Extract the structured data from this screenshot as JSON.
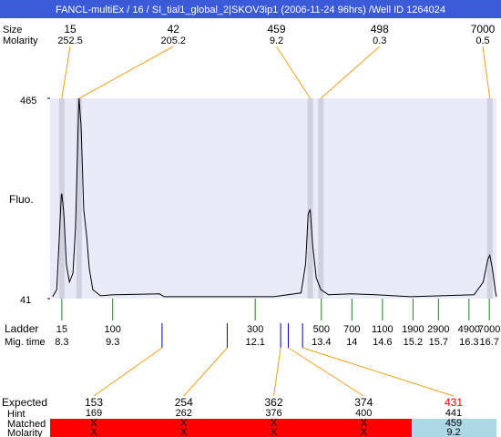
{
  "chart_data": {
    "type": "line",
    "title": "FANCL-multiEx / 16 / SI_tial1_global_2|SKOV3ip1 (2006-11-24 96hrs) /Well ID 1264024",
    "y_label": "Fluo.",
    "color": "#000000",
    "xlim": [
      8.07,
      16.84
    ],
    "ylim": [
      41,
      465
    ],
    "yticks": [
      41,
      465
    ],
    "x": [
      8.12,
      8.2,
      8.25,
      8.29,
      8.3,
      8.34,
      8.39,
      8.45,
      8.52,
      8.57,
      8.63,
      8.64,
      8.68,
      8.73,
      8.79,
      8.84,
      8.91,
      9.06,
      9.32,
      10.22,
      10.31,
      12.46,
      13.0,
      13.09,
      13.14,
      13.18,
      13.23,
      13.3,
      13.39,
      13.54,
      13.98,
      14.47,
      15.15,
      16.4,
      16.58,
      16.67,
      16.71,
      16.76,
      16.82,
      16.84
    ],
    "values": [
      45,
      60,
      172,
      259,
      263,
      220,
      113,
      76,
      95,
      191,
      442,
      465,
      403,
      230,
      172,
      105,
      60,
      47,
      49,
      51,
      45,
      45,
      53,
      114,
      220,
      230,
      153,
      85,
      60,
      49,
      51,
      49,
      45,
      49,
      76,
      124,
      133,
      105,
      56,
      45
    ],
    "peaks": {
      "size_label": "Size",
      "molarity_label": "Molarity",
      "size": [
        15,
        42,
        459,
        498,
        7000
      ],
      "molarity": [
        252.5,
        205.2,
        9.2,
        0.3,
        0.5
      ],
      "mig_time": [
        8.3,
        8.64,
        13.18,
        13.39,
        16.71
      ],
      "color": "#d0d0e0",
      "line_color": "#f0a020"
    },
    "ladder": {
      "label": "Ladder",
      "time_label": "Mig. time",
      "size": [
        15,
        100,
        300,
        500,
        700,
        1100,
        1900,
        2900,
        4900,
        7000
      ],
      "mig_time": [
        8.3,
        9.3,
        12.1,
        13.4,
        14,
        14.6,
        15.2,
        15.7,
        16.3,
        16.7
      ],
      "color": "#208020"
    },
    "expected": {
      "label": "Expected",
      "hint_label": "Hint",
      "matched_label": "Matched",
      "molarity_label": "Molarity",
      "size": [
        153,
        254,
        362,
        374,
        431
      ],
      "mig_time": [
        10.27,
        11.55,
        12.6,
        12.75,
        13.03
      ],
      "hint": [
        169,
        262,
        376,
        400,
        441
      ],
      "matched": [
        "X",
        "X",
        "X",
        "X",
        459
      ],
      "molarity": [
        "X",
        "X",
        "X",
        "X",
        9.2
      ],
      "colors": [
        "#000000",
        "#000000",
        "#000000",
        "#000000",
        "#ee0000"
      ],
      "matched_colors": [
        "#ff0000",
        "#ff0000",
        "#ff0000",
        "#ff0000",
        "#add8e6"
      ],
      "marker_color": "#0000cc"
    }
  }
}
